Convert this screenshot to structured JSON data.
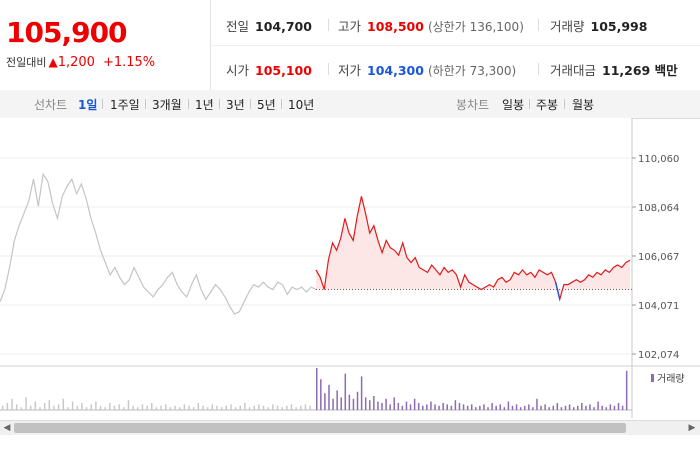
{
  "quote": {
    "price": "105,900",
    "change_label": "전일대비",
    "change_arrow": "▲",
    "change_value": "1,200",
    "change_pct": "+1.15%",
    "up_color": "#e00000",
    "down_color": "#1a56d6"
  },
  "stats": {
    "prev_close": {
      "label": "전일",
      "value": "104,700"
    },
    "high": {
      "label": "고가",
      "value": "108,500",
      "sub": "(상한가 136,100)"
    },
    "volume": {
      "label": "거래량",
      "value": "105,998"
    },
    "open": {
      "label": "시가",
      "value": "105,100"
    },
    "low": {
      "label": "저가",
      "value": "104,300",
      "sub": "(하한가 73,300)"
    },
    "trade_value": {
      "label": "거래대금",
      "value": "11,269 백만"
    }
  },
  "toolbar": {
    "line_chart_label": "선차트",
    "periods": [
      "1일",
      "1주일",
      "3개월",
      "1년",
      "3년",
      "5년",
      "10년"
    ],
    "active_period": "1일",
    "candle_label": "봉차트",
    "candle_periods": [
      "일봉",
      "주봉",
      "월봉"
    ]
  },
  "chart_data": {
    "type": "line",
    "y_ticks": [
      "110,060",
      "108,064",
      "106,067",
      "104,071",
      "102,074"
    ],
    "ylim": [
      102074,
      110060
    ],
    "reference_price": 104700,
    "volume_legend": "거래량",
    "line_colors": {
      "previous_day": "#c4c4c4",
      "up": "#e31919",
      "down": "#1a56d6",
      "fill": "#fde3e3"
    },
    "previous_day": [
      104200,
      104700,
      105600,
      106700,
      107300,
      107800,
      108300,
      109200,
      108100,
      109400,
      109100,
      108200,
      107600,
      108500,
      108900,
      109200,
      108600,
      109000,
      108400,
      107600,
      107000,
      106300,
      105800,
      105300,
      105600,
      105200,
      104900,
      105100,
      105600,
      105200,
      104800,
      104600,
      104400,
      104700,
      104900,
      105200,
      105400,
      104900,
      104600,
      104400,
      104900,
      105300,
      104700,
      104300,
      104600,
      104900,
      104700,
      104400,
      104000,
      103700,
      103800,
      104200,
      104600,
      104900,
      104800,
      105000,
      104800,
      104700,
      105000,
      104900,
      104500,
      104800,
      104700,
      104800,
      104600,
      104800,
      104700
    ],
    "today": [
      105500,
      105200,
      104700,
      105900,
      106600,
      106300,
      106800,
      107600,
      107000,
      106700,
      107700,
      108500,
      107800,
      107000,
      107300,
      106700,
      106200,
      106700,
      106400,
      106300,
      106100,
      106600,
      106000,
      105800,
      106000,
      105600,
      105500,
      105400,
      105700,
      105500,
      105300,
      105600,
      105400,
      105500,
      105300,
      104800,
      105300,
      105000,
      104900,
      104800,
      104700,
      104800,
      104900,
      104800,
      105100,
      105200,
      105000,
      105100,
      105400,
      105300,
      105500,
      105300,
      105400,
      105200,
      105500,
      105400,
      105300,
      105400,
      105000,
      104300,
      104900,
      104900,
      105000,
      105100,
      105000,
      105100,
      105300,
      105200,
      105400,
      105300,
      105500,
      105400,
      105600,
      105700,
      105600,
      105800,
      105900
    ],
    "volume_prev": [
      3,
      5,
      8,
      4,
      2,
      9,
      3,
      6,
      2,
      5,
      7,
      3,
      4,
      8,
      2,
      6,
      3,
      5,
      2,
      4,
      6,
      3,
      2,
      5,
      3,
      4,
      2,
      7,
      3,
      2,
      4,
      3,
      5,
      2,
      3,
      4,
      2,
      3,
      2,
      4,
      3,
      2,
      5,
      3,
      2,
      4,
      3,
      2,
      3,
      4,
      2,
      3,
      5,
      2,
      3,
      4,
      3,
      2,
      4,
      3,
      2,
      3,
      4,
      2,
      3,
      4,
      3
    ],
    "volume_today": [
      30,
      22,
      12,
      18,
      8,
      14,
      9,
      26,
      11,
      8,
      13,
      24,
      9,
      7,
      10,
      6,
      5,
      8,
      4,
      9,
      5,
      3,
      6,
      4,
      8,
      5,
      3,
      4,
      6,
      4,
      3,
      5,
      4,
      3,
      7,
      5,
      4,
      3,
      4,
      2,
      3,
      4,
      2,
      5,
      3,
      4,
      2,
      6,
      3,
      4,
      2,
      3,
      4,
      2,
      8,
      3,
      4,
      2,
      3,
      5,
      2,
      3,
      4,
      2,
      3,
      5,
      3,
      4,
      2,
      6,
      3,
      2,
      4,
      3,
      5,
      3,
      28
    ]
  }
}
